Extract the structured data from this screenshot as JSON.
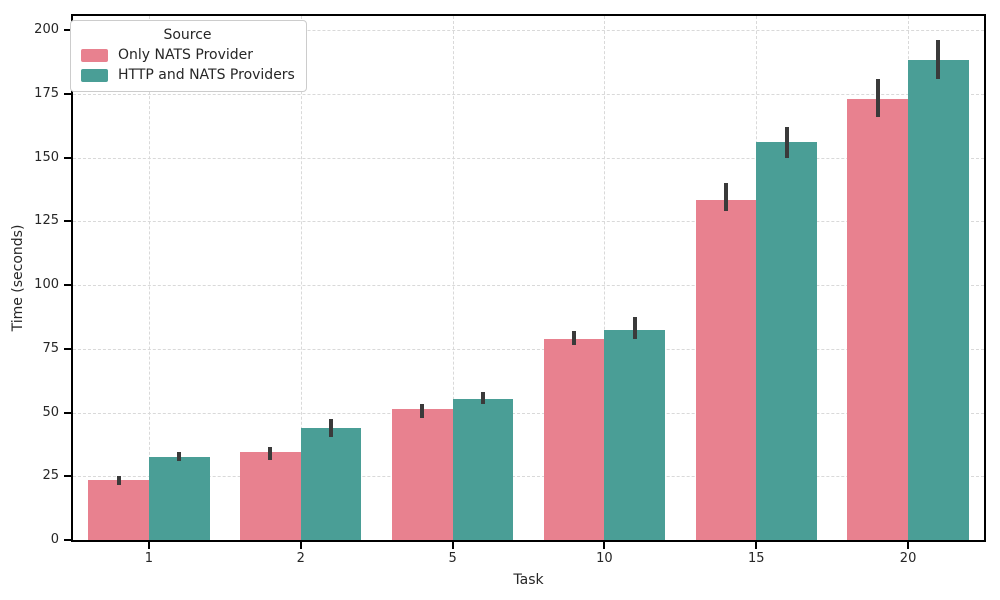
{
  "chart_data": {
    "type": "bar",
    "title": "",
    "xlabel": "Task",
    "ylabel": "Time (seconds)",
    "categories": [
      "1",
      "2",
      "5",
      "10",
      "15",
      "20"
    ],
    "series": [
      {
        "name": "Only NATS Provider",
        "color": "#e8818f",
        "values": [
          23.5,
          34.5,
          51.5,
          79,
          133.5,
          173
        ],
        "ci_low": [
          21.5,
          31.5,
          48,
          76.5,
          129,
          166
        ],
        "ci_high": [
          25,
          36.5,
          53.5,
          82,
          140,
          181
        ]
      },
      {
        "name": "HTTP and NATS Providers",
        "color": "#4a9e96",
        "values": [
          32.5,
          44,
          55.5,
          82.5,
          156,
          188.5
        ],
        "ci_low": [
          31,
          40.5,
          53.5,
          79,
          150,
          181
        ],
        "ci_high": [
          34.5,
          47.5,
          58,
          87.5,
          162,
          196
        ]
      }
    ],
    "legend": {
      "title": "Source",
      "position": "upper left"
    },
    "ylim": [
      0,
      205.6
    ],
    "yticks": [
      0,
      25,
      50,
      75,
      100,
      125,
      150,
      175,
      200
    ],
    "grid": true,
    "grid_style": "dashed",
    "bar_group_width": 0.8,
    "error_bar_color": "#3a3a3a",
    "spine_color": "#000000",
    "grid_color": "#d9d9d9"
  }
}
